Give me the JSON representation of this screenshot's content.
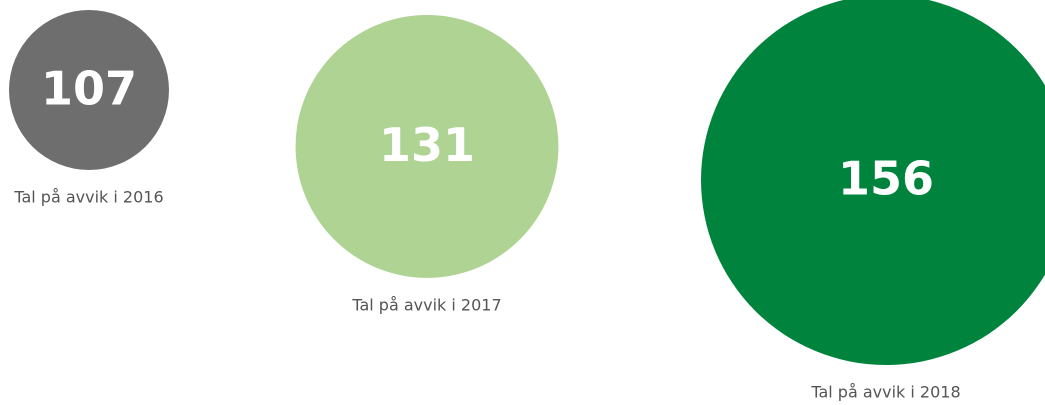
{
  "chart_data": {
    "type": "bubble",
    "categories": [
      "Tal på avvik i 2016",
      "Tal på avvik i 2017",
      "Tal på avvik i 2018"
    ],
    "values": [
      107,
      131,
      156
    ],
    "colors": [
      "#6d6e6d",
      "#aed392",
      "#00843d"
    ]
  }
}
